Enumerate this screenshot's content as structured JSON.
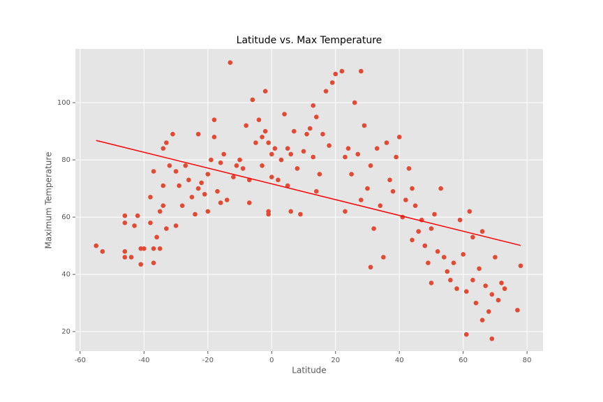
{
  "chart_data": {
    "type": "scatter",
    "title": "Latitude vs. Max Temperature",
    "x_label": "Latitude",
    "y_label": "Maximum Temperature",
    "xlim": [
      -61.5,
      85
    ],
    "ylim": [
      13.2,
      118.8
    ],
    "xticks": [
      -60,
      -40,
      -20,
      0,
      20,
      40,
      60,
      80
    ],
    "yticks": [
      20,
      40,
      60,
      80,
      100
    ],
    "grid": true,
    "color": "#e24a33",
    "x": [
      -55,
      -53,
      -46,
      -46,
      -46,
      -46,
      -44,
      -43,
      -42,
      -41,
      -41,
      -40,
      -38,
      -38,
      -37,
      -37,
      -37,
      -36,
      -35,
      -35,
      -34,
      -34,
      -34,
      -33,
      -33,
      -32,
      -31,
      -30,
      -30,
      -29,
      -28,
      -27,
      -26,
      -25,
      -24,
      -23,
      -23,
      -22,
      -21,
      -20,
      -20,
      -19,
      -18,
      -18,
      -17,
      -16,
      -16,
      -15,
      -14,
      -13,
      -12,
      -11,
      -10,
      -9,
      -8,
      -7,
      -7,
      -6,
      -5,
      -4,
      -3,
      -3,
      -2,
      -2,
      -1,
      -1,
      -1,
      0,
      0,
      1,
      2,
      3,
      4,
      5,
      5,
      6,
      6,
      7,
      8,
      9,
      10,
      11,
      12,
      13,
      13,
      14,
      14,
      15,
      16,
      17,
      18,
      19,
      20,
      22,
      23,
      23,
      24,
      25,
      26,
      27,
      28,
      28,
      29,
      30,
      31,
      31,
      32,
      33,
      34,
      35,
      36,
      37,
      38,
      39,
      40,
      41,
      42,
      43,
      44,
      44,
      45,
      46,
      47,
      48,
      49,
      50,
      50,
      51,
      52,
      53,
      54,
      55,
      56,
      57,
      58,
      59,
      60,
      61,
      61,
      62,
      63,
      63,
      64,
      65,
      66,
      66,
      67,
      68,
      69,
      69,
      70,
      71,
      72,
      73,
      77,
      78
    ],
    "values": [
      50,
      48,
      60.5,
      58,
      48,
      46,
      46,
      57,
      60.5,
      49,
      43.5,
      49,
      58,
      67,
      76,
      44,
      49,
      53,
      49,
      62,
      64,
      71,
      84,
      86,
      56,
      78,
      89,
      76,
      57,
      71,
      64,
      78,
      73,
      67,
      61,
      89,
      70,
      72,
      68,
      75,
      62,
      80,
      94,
      88,
      69,
      65,
      79,
      82,
      66,
      114,
      74,
      78,
      80,
      77,
      92,
      65,
      73,
      101,
      86,
      94,
      88,
      78,
      104,
      90,
      61,
      62,
      86,
      74,
      82,
      84,
      73,
      80,
      96,
      84,
      71,
      82,
      62,
      90,
      77,
      61,
      83,
      89,
      91,
      99,
      81,
      95,
      69,
      75,
      89,
      104,
      85,
      107,
      110,
      111,
      81,
      62,
      84,
      75,
      100,
      82,
      111,
      66,
      92,
      70,
      42.5,
      78,
      56,
      84,
      64,
      46,
      86,
      73,
      69,
      81,
      88,
      60,
      66,
      77,
      52,
      70,
      64,
      55,
      59,
      50,
      44,
      37,
      56,
      61,
      48,
      70,
      46,
      41,
      38,
      44,
      35,
      59,
      47,
      34,
      19,
      62,
      53,
      38,
      30,
      42,
      24,
      55,
      36,
      27,
      17.5,
      33,
      46,
      31,
      37,
      35,
      27.5,
      43
    ],
    "trend": {
      "color": "#ff0000",
      "x": [
        -55,
        78
      ],
      "values": [
        86.8,
        50.1
      ]
    }
  }
}
